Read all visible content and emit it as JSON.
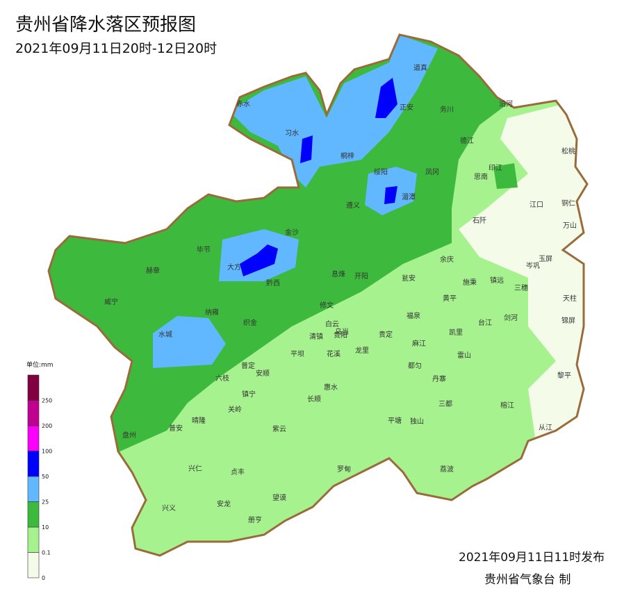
{
  "title": "贵州省降水落区预报图",
  "subtitle": "2021年09月11日20时-12日20时",
  "legend": {
    "unit": "单位:mm",
    "ticks": [
      0,
      0.1,
      10,
      25,
      50,
      100,
      200,
      250
    ],
    "colors": [
      "#f5fbe9",
      "#a6f28f",
      "#3dba3d",
      "#61b8ff",
      "#0000ff",
      "#fa00fa",
      "#c0008f",
      "#800040"
    ]
  },
  "places": [
    "赤水",
    "习水",
    "桐梓",
    "正安",
    "道真",
    "务川",
    "沿河",
    "德江",
    "印江",
    "思南",
    "松桃",
    "绥阳",
    "凤冈",
    "湄潭",
    "遵义",
    "江口",
    "铜仁",
    "石阡",
    "万山",
    "金沙",
    "毕节",
    "大方",
    "黔西",
    "赫章",
    "息烽",
    "开阳",
    "余庆",
    "玉屏",
    "岑巩",
    "施秉",
    "镇远",
    "三穗",
    "瓮安",
    "威宁",
    "纳雍",
    "修文",
    "黄平",
    "天柱",
    "织金",
    "白云",
    "乌当",
    "福泉",
    "台江",
    "剑河",
    "锦屏",
    "水城",
    "清镇",
    "贵阳",
    "贵定",
    "麻江",
    "凯里",
    "平坝",
    "花溪",
    "龙里",
    "雷山",
    "普定",
    "安顺",
    "都匀",
    "六枝",
    "黎平",
    "惠水",
    "丹寨",
    "镇宁",
    "长顺",
    "三都",
    "榕江",
    "关岭",
    "晴隆",
    "紫云",
    "平塘",
    "独山",
    "从江",
    "盘州",
    "普安",
    "兴仁",
    "贞丰",
    "罗甸",
    "荔波",
    "安龙",
    "兴义",
    "望谟",
    "册亨"
  ],
  "footer": {
    "issued": "2021年09月11日11时发布",
    "agency": "贵州省气象台 制"
  }
}
